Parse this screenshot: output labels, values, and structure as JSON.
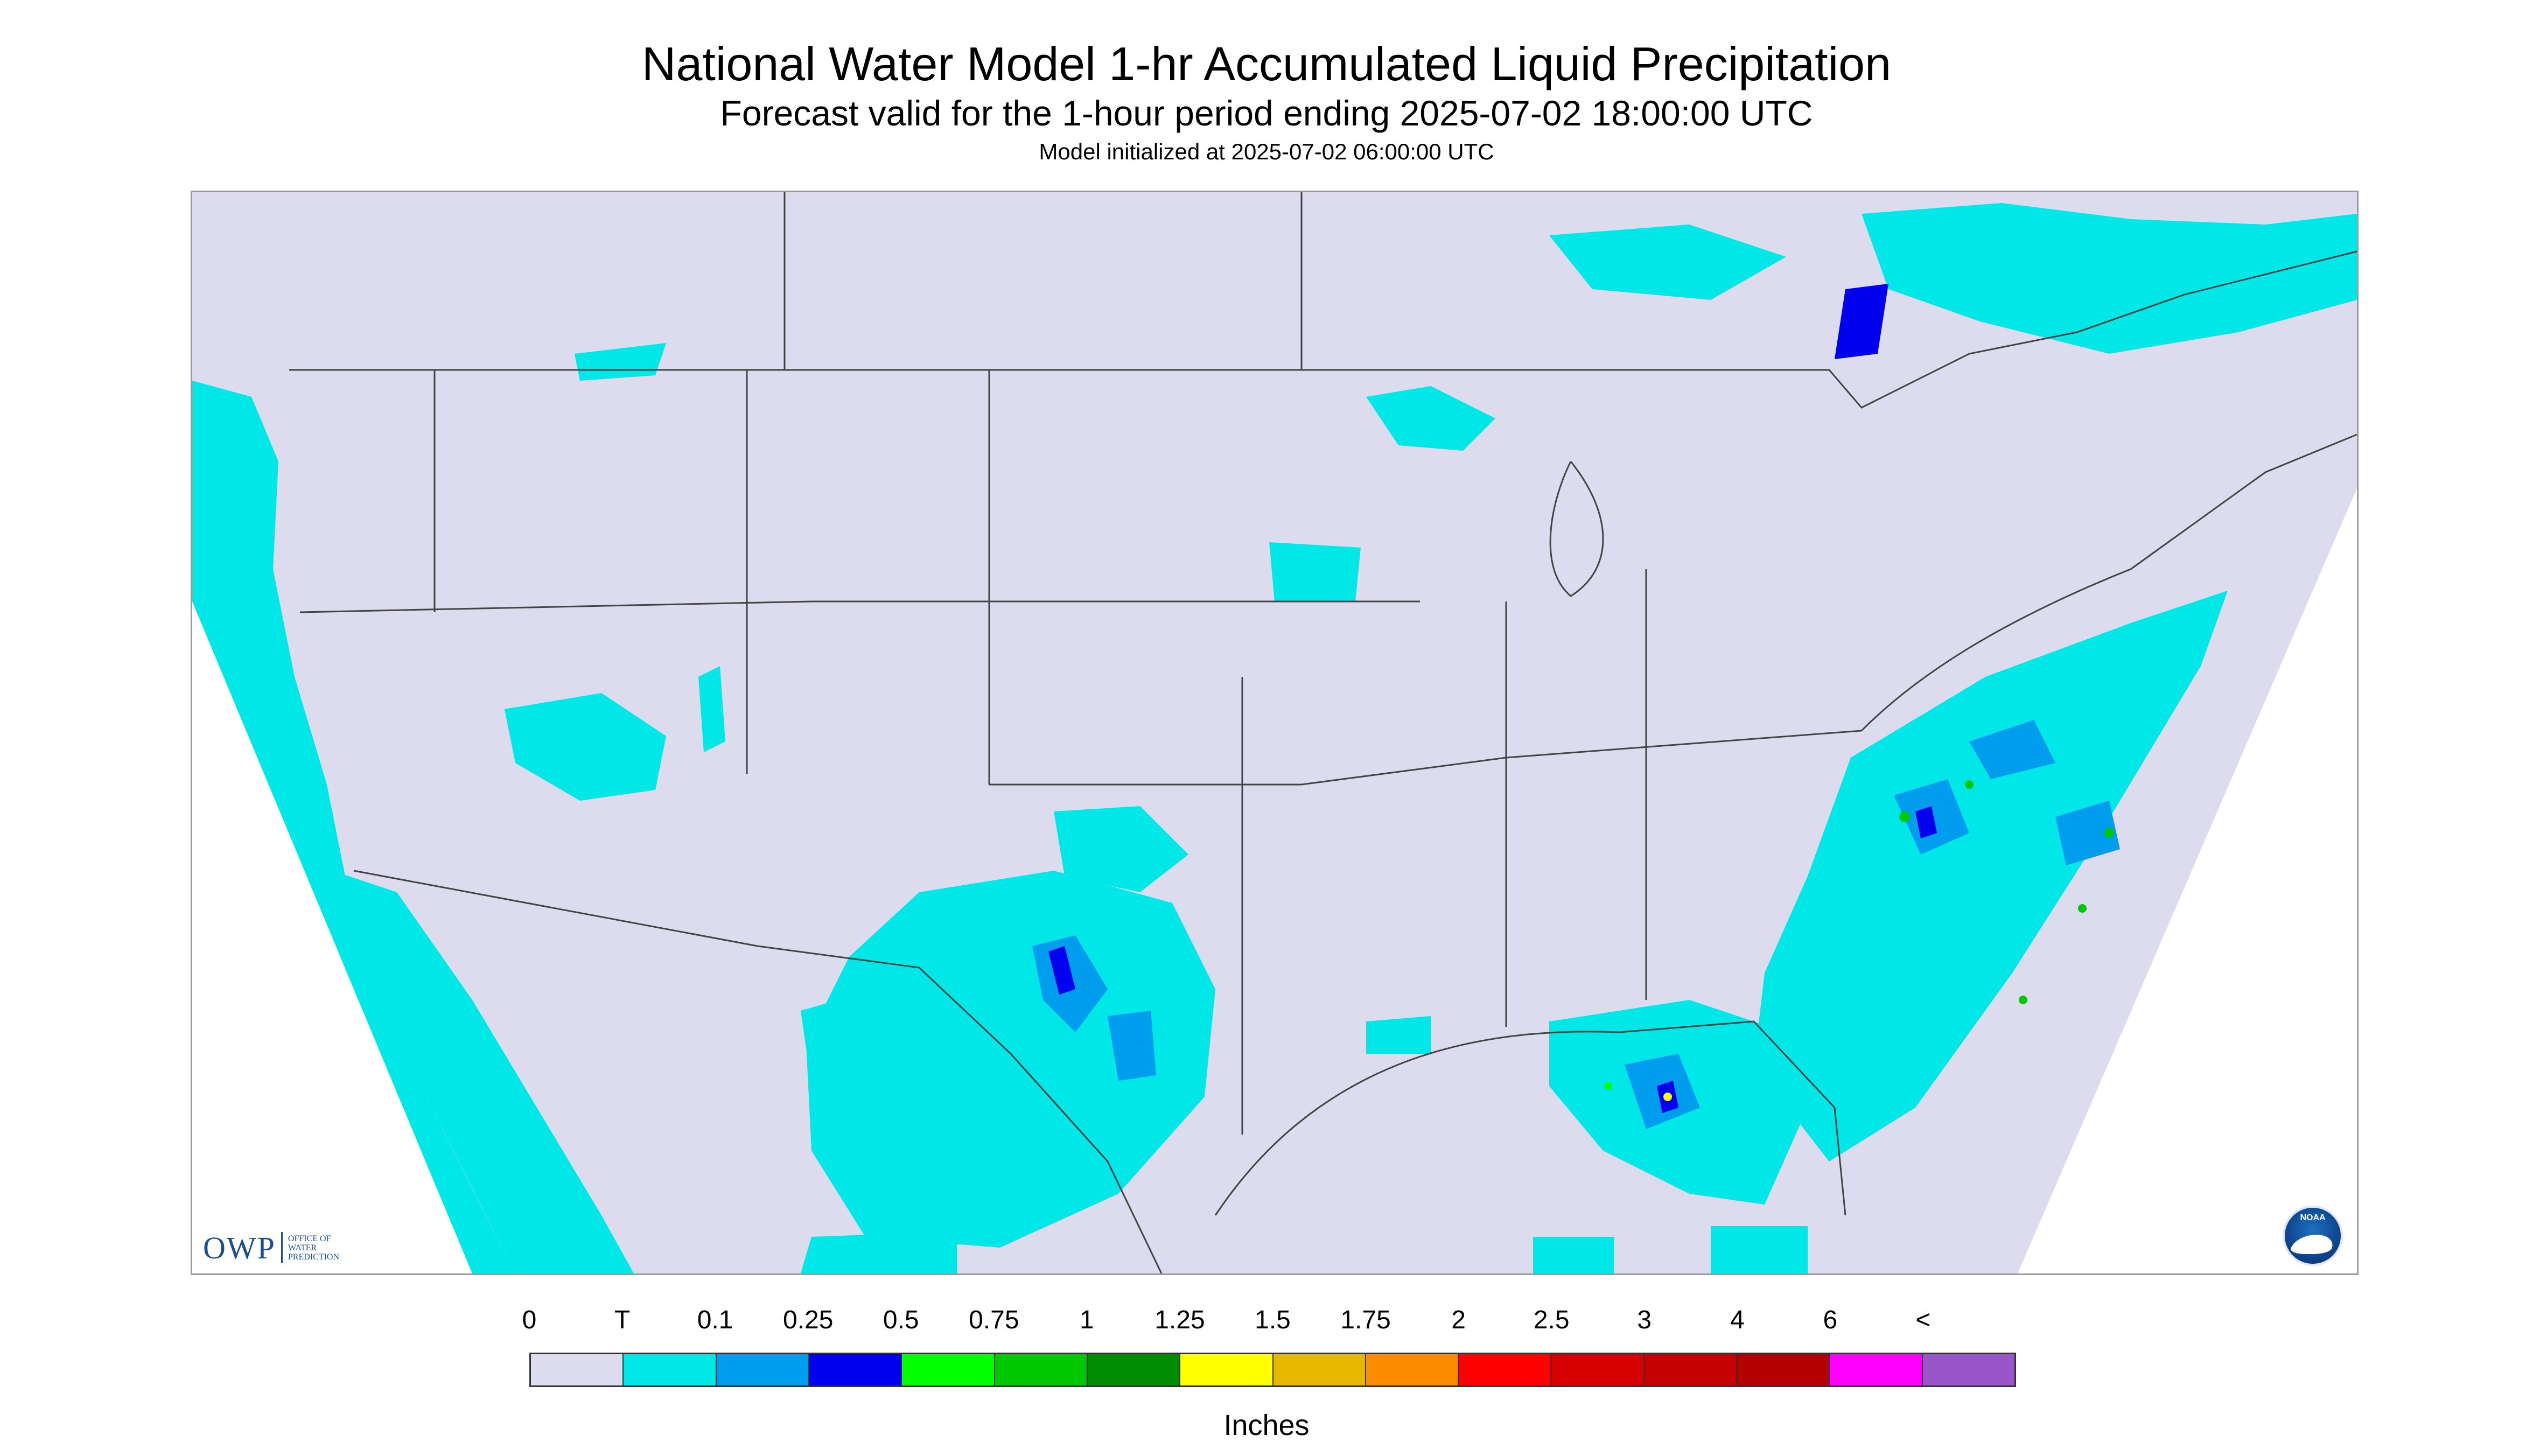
{
  "title": "National Water Model 1-hr Accumulated Liquid Precipitation",
  "subtitle": "Forecast valid for the 1-hour period ending 2025-07-02 18:00:00 UTC",
  "init_line": "Model initialized at 2025-07-02 06:00:00 UTC",
  "logos": {
    "owp_mark": "OWP",
    "owp_text": [
      "OFFICE OF",
      "WATER",
      "PREDICTION"
    ],
    "noaa_text": "NOAA"
  },
  "legend": {
    "labels": [
      "0",
      "T",
      "0.1",
      "0.25",
      "0.5",
      "0.75",
      "1",
      "1.25",
      "1.5",
      "1.75",
      "2",
      "2.5",
      "3",
      "4",
      "6",
      "<"
    ],
    "colors": [
      "#dcdcee",
      "#00e7e7",
      "#009cee",
      "#0000ee",
      "#00ff00",
      "#00c800",
      "#008c00",
      "#ffff00",
      "#e6b800",
      "#ff8c00",
      "#ff0000",
      "#d70000",
      "#c40000",
      "#b40000",
      "#ff00ff",
      "#9955c9"
    ],
    "units": "Inches"
  },
  "colors": {
    "no_data": "#ffffff",
    "map_base": "#dcdcee",
    "trace": "#00e7e7",
    "light": "#009cee",
    "moderate": "#0000ee",
    "heavy": "#00c800",
    "boundary": "#444444"
  }
}
